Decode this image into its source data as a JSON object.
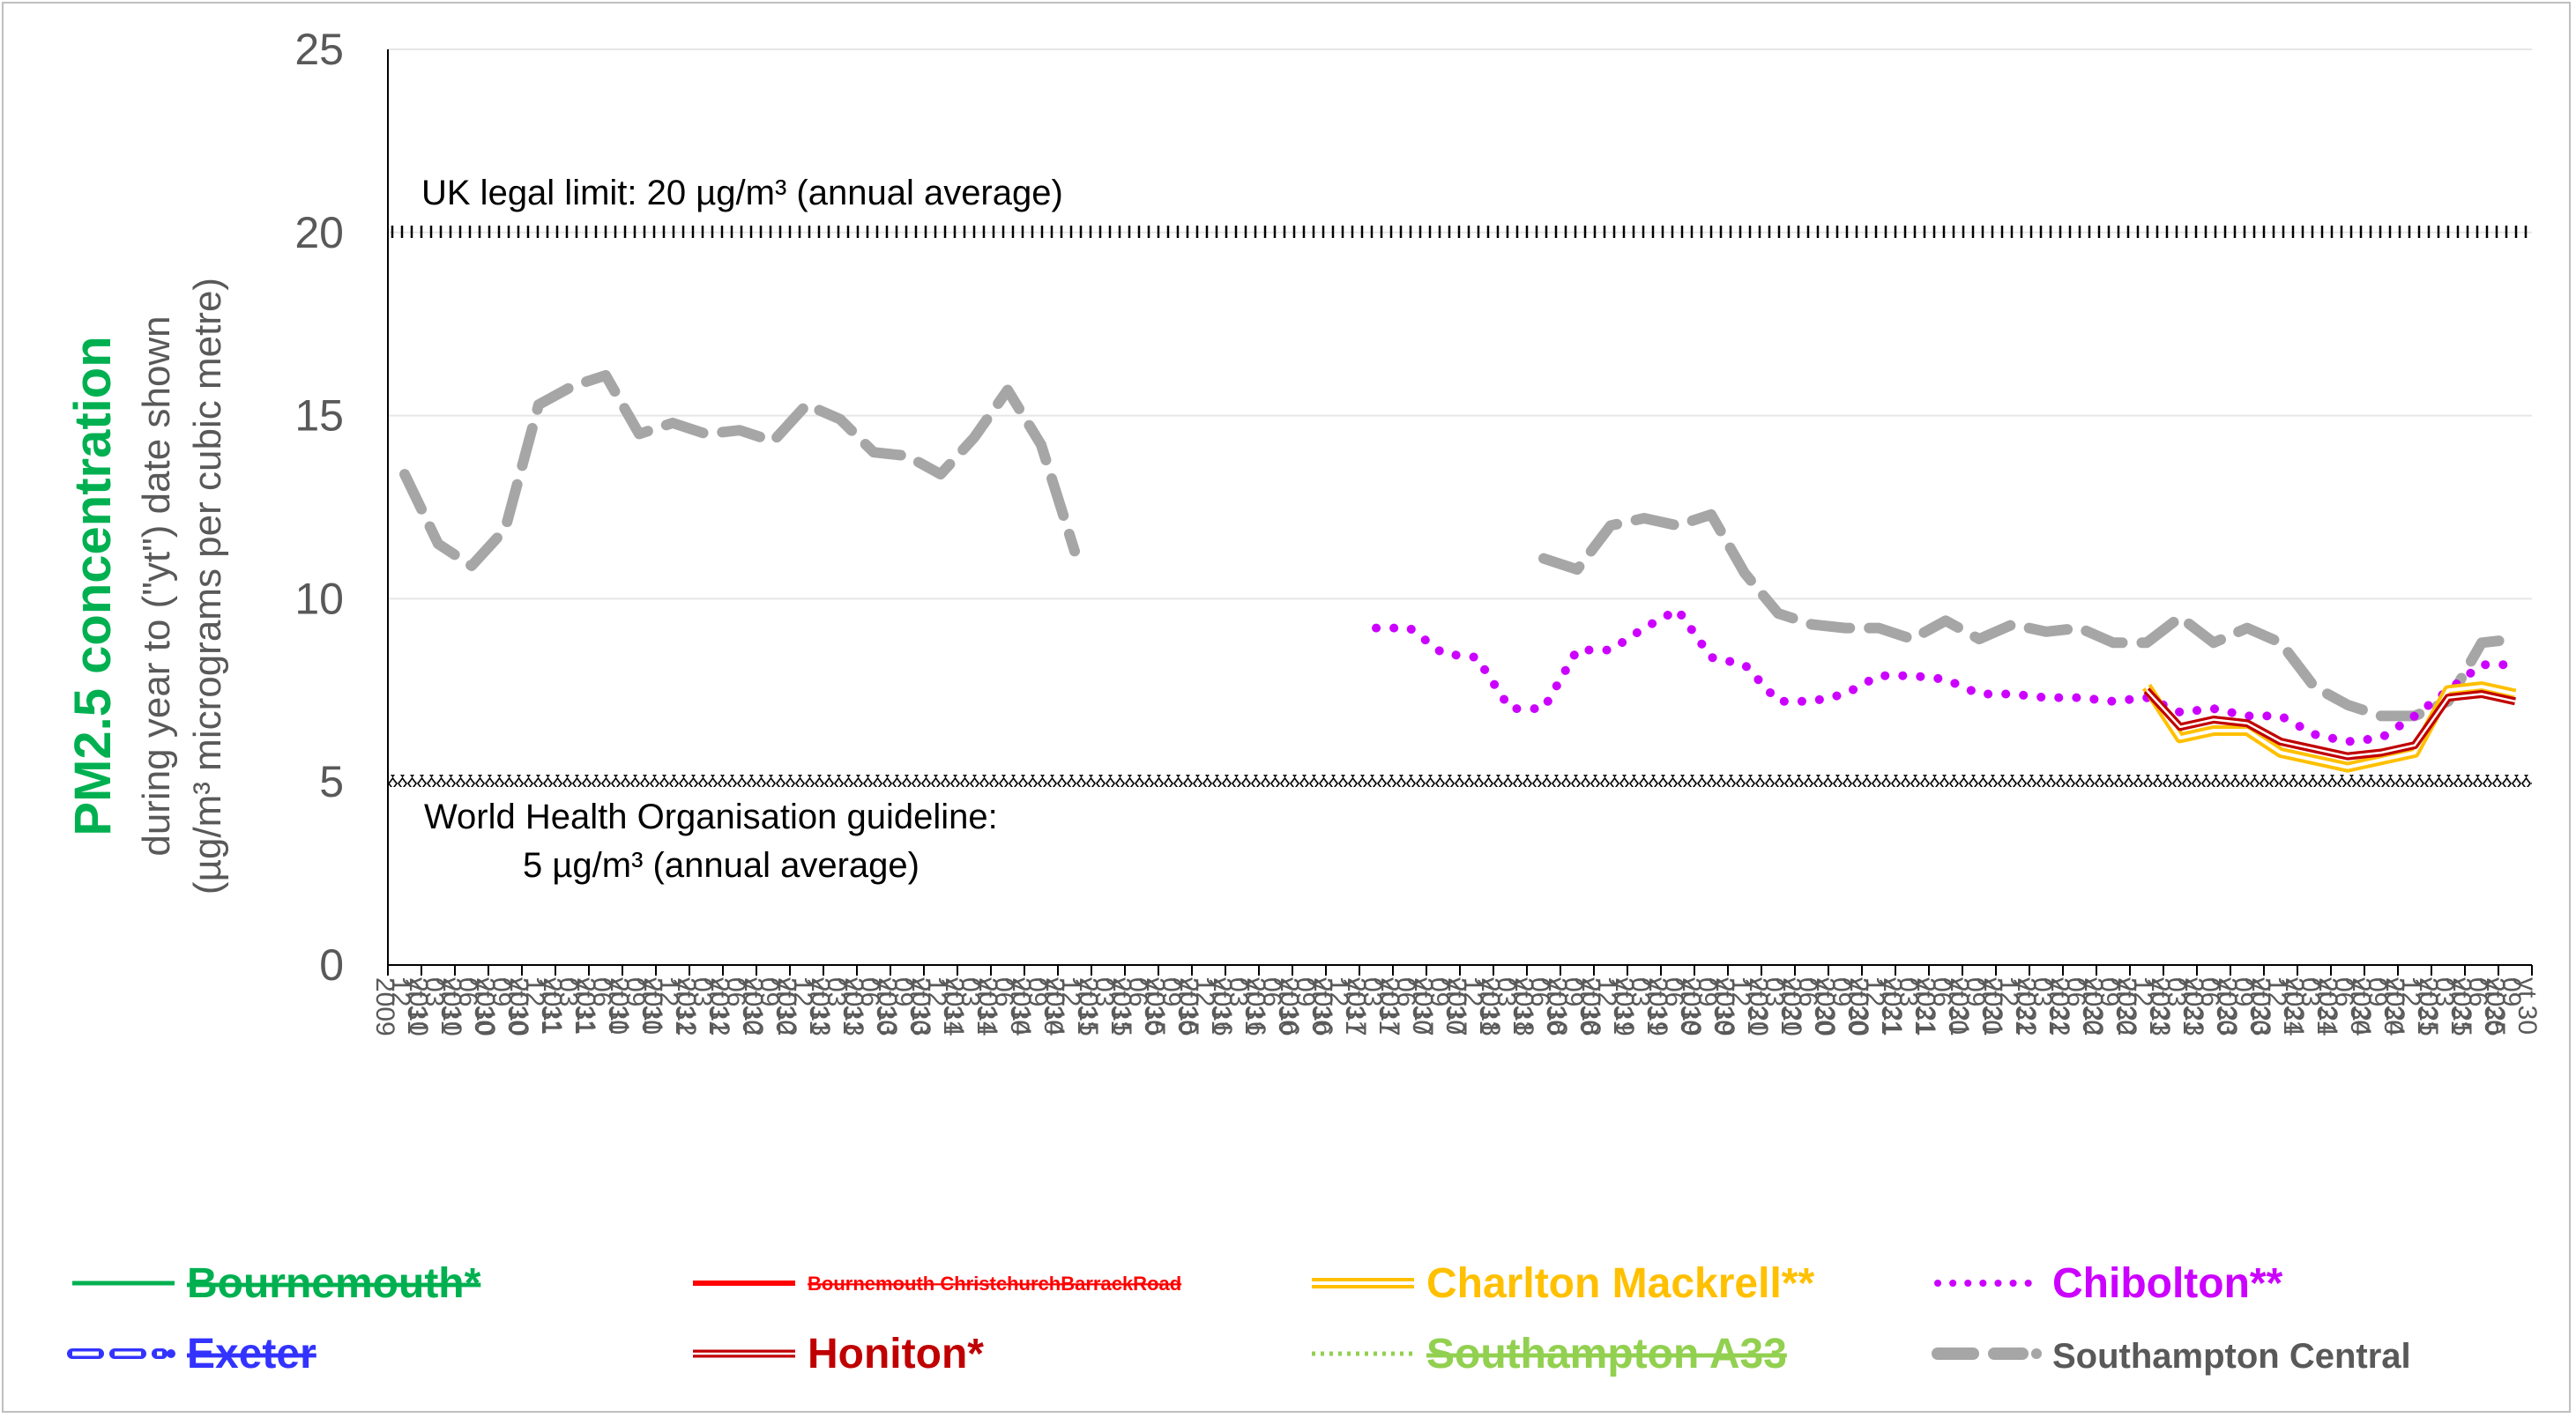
{
  "colors": {
    "bournemouth": "#00b050",
    "barrack": "#ff0000",
    "charlton": "#ffc000",
    "chibolton": "#cc00ff",
    "exeter": "#3333ff",
    "honiton": "#c00000",
    "southampton_a33": "#92d050",
    "southampton_central": "#a6a6a6",
    "axis_text": "#595959"
  },
  "chart_data": {
    "type": "line",
    "ylabel_main": "PM2.5 concentration",
    "ylabel_line2": "during year to (\"yt\") date shown",
    "ylabel_line3": "(µg/m³ micrograms per cubic metre)",
    "ylim": [
      0,
      25
    ],
    "yticks": [
      "0",
      "5",
      "10",
      "15",
      "20",
      "25"
    ],
    "categories": [
      "yt 31 12 2009",
      "yt 31 03 2010",
      "yt 30 06 2010",
      "yt 30 09 2010",
      "yt 31 12 2010",
      "yt 31 03 2011",
      "yt 30 06 2011",
      "yt 30 09 2011",
      "yt 31 12 2011",
      "yt 31 03 2012",
      "yt 30 06 2012",
      "yt 30 09 2012",
      "yt 31 12 2012",
      "yt 31 03 2013",
      "yt 30 06 2013",
      "yt 30 09 2013",
      "yt 31 12 2013",
      "yt 31 03 2014",
      "yt 30 06 2014",
      "yt 30 09 2014",
      "yt 31 12 2014",
      "yt 31 03 2015",
      "yt 30 06 2015",
      "yt 30 09 2015",
      "yt 31 12 2015",
      "yt 31 03 2016",
      "yt 30 06 2016",
      "yt 30 09 2016",
      "yt 31 12 2016",
      "yt 31 03 2017",
      "yt 30 06 2017",
      "yt 30 09 2017",
      "yt 31 12 2017",
      "yt 31 03 2018",
      "yt 30 06 2018",
      "yt 30 09 2018",
      "yt 31 12 2018",
      "yt 31 03 2019",
      "yt 30 06 2019",
      "yt 30 09 2019",
      "yt 31 12 2019",
      "yt 31 03 2020",
      "yt 30 06 2020",
      "yt 30 09 2020",
      "yt 31 12 2020",
      "yt 31 03 2021",
      "yt 30 06 2021",
      "yt 30 09 2021",
      "yt 31 12 2021",
      "yt 31 03 2022",
      "yt 30 06 2022",
      "yt 30 09 2022",
      "yt 31 12 2022",
      "yt 31 03 2023",
      "yt 30 06 2023",
      "yt 30 09 2023",
      "yt 31 12 2023",
      "yt 31 03 2024",
      "yt 30 06 2024",
      "yt 30 09 2024",
      "yt 31 12 2024",
      "yt 31 03 2025",
      "yt 30 06 2025",
      "yt 30 09 2025"
    ],
    "reference_lines": [
      {
        "value": 20,
        "label": "UK legal limit: 20 µg/m³ (annual average)"
      },
      {
        "value": 5,
        "label_line1": "World Health Organisation guideline:",
        "label_line2": "5 µg/m³ (annual average)"
      }
    ],
    "legend": [
      {
        "key": "bournemouth",
        "label": "Bournemouth*",
        "struck": true
      },
      {
        "key": "barrack",
        "label": "Bournemouth ChristchurchBarrackRoad",
        "struck": true
      },
      {
        "key": "charlton",
        "label": "Charlton Mackrell**",
        "struck": false
      },
      {
        "key": "chibolton",
        "label": "Chibolton**",
        "struck": false
      },
      {
        "key": "exeter",
        "label": "Exeter",
        "struck": true
      },
      {
        "key": "honiton",
        "label": "Honiton*",
        "struck": false
      },
      {
        "key": "southampton_a33",
        "label": "Southampton A33",
        "struck": true
      },
      {
        "key": "southampton_central",
        "label": "Southampton Central",
        "struck": false
      }
    ],
    "series": [
      {
        "key": "southampton_central",
        "name": "Southampton Central",
        "values": [
          13.4,
          11.5,
          10.9,
          11.9,
          15.3,
          15.8,
          16.1,
          14.5,
          14.8,
          14.5,
          14.6,
          14.3,
          15.3,
          14.9,
          14.0,
          13.9,
          13.4,
          14.4,
          15.7,
          14.2,
          11.3,
          null,
          null,
          null,
          null,
          null,
          null,
          null,
          null,
          null,
          null,
          null,
          null,
          null,
          11.1,
          10.8,
          12.0,
          12.2,
          12.0,
          12.3,
          10.7,
          9.6,
          9.3,
          9.2,
          9.2,
          8.9,
          9.4,
          8.9,
          9.3,
          9.1,
          9.2,
          8.8,
          8.8,
          9.5,
          8.8,
          9.2,
          8.8,
          7.6,
          7.1,
          6.8,
          6.8,
          7.2,
          8.8,
          8.9
        ]
      },
      {
        "key": "chibolton",
        "name": "Chibolton**",
        "values": [
          null,
          null,
          null,
          null,
          null,
          null,
          null,
          null,
          null,
          null,
          null,
          null,
          null,
          null,
          null,
          null,
          null,
          null,
          null,
          null,
          null,
          null,
          null,
          null,
          null,
          null,
          null,
          null,
          null,
          9.2,
          9.2,
          8.5,
          8.4,
          7.0,
          7.0,
          8.6,
          8.6,
          9.2,
          9.7,
          8.4,
          8.2,
          7.2,
          7.2,
          7.4,
          7.9,
          7.9,
          7.8,
          7.4,
          7.4,
          7.3,
          7.3,
          7.2,
          7.3,
          6.9,
          7.0,
          6.8,
          6.8,
          6.3,
          6.1,
          6.2,
          6.8,
          7.5,
          8.2,
          8.2
        ]
      },
      {
        "key": "charlton",
        "name": "Charlton Mackrell**",
        "values": [
          null,
          null,
          null,
          null,
          null,
          null,
          null,
          null,
          null,
          null,
          null,
          null,
          null,
          null,
          null,
          null,
          null,
          null,
          null,
          null,
          null,
          null,
          null,
          null,
          null,
          null,
          null,
          null,
          null,
          null,
          null,
          null,
          null,
          null,
          null,
          null,
          null,
          null,
          null,
          null,
          null,
          null,
          null,
          null,
          null,
          null,
          null,
          null,
          null,
          null,
          null,
          null,
          7.6,
          6.2,
          6.4,
          6.4,
          5.8,
          5.6,
          5.4,
          5.6,
          5.8,
          7.5,
          7.6,
          7.4
        ]
      },
      {
        "key": "honiton",
        "name": "Honiton*",
        "values": [
          null,
          null,
          null,
          null,
          null,
          null,
          null,
          null,
          null,
          null,
          null,
          null,
          null,
          null,
          null,
          null,
          null,
          null,
          null,
          null,
          null,
          null,
          null,
          null,
          null,
          null,
          null,
          null,
          null,
          null,
          null,
          null,
          null,
          null,
          null,
          null,
          null,
          null,
          null,
          null,
          null,
          null,
          null,
          null,
          null,
          null,
          null,
          null,
          null,
          null,
          null,
          null,
          7.5,
          6.5,
          6.7,
          6.6,
          6.1,
          5.9,
          5.7,
          5.8,
          6.0,
          7.3,
          7.4,
          7.2
        ]
      }
    ]
  }
}
